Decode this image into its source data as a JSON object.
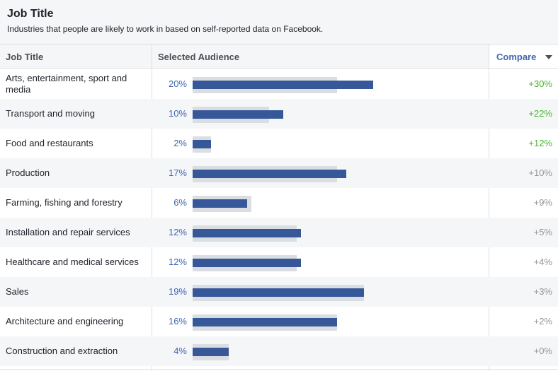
{
  "header": {
    "title": "Job Title",
    "subtitle": "Industries that people are likely to work in based on self-reported data on Facebook."
  },
  "columns": {
    "job": "Job Title",
    "audience": "Selected Audience",
    "compare": "Compare"
  },
  "colors": {
    "bar": "#365899",
    "bar_bg": "#dadde1",
    "positive": "#42b72a",
    "neutral": "#90949c",
    "link": "#4267b2"
  },
  "rows": [
    {
      "label": "Arts, entertainment, sport and media",
      "pct": "20%",
      "value": 20,
      "baseline": 16,
      "compare": "+30%",
      "highlight": true
    },
    {
      "label": "Transport and moving",
      "pct": "10%",
      "value": 10,
      "baseline": 8.5,
      "compare": "+22%",
      "highlight": true
    },
    {
      "label": "Food and restaurants",
      "pct": "2%",
      "value": 2,
      "baseline": 2,
      "compare": "+12%",
      "highlight": true
    },
    {
      "label": "Production",
      "pct": "17%",
      "value": 17,
      "baseline": 16,
      "compare": "+10%",
      "highlight": false
    },
    {
      "label": "Farming, fishing and forestry",
      "pct": "6%",
      "value": 6,
      "baseline": 6.5,
      "compare": "+9%",
      "highlight": false
    },
    {
      "label": "Installation and repair services",
      "pct": "12%",
      "value": 12,
      "baseline": 11.5,
      "compare": "+5%",
      "highlight": false
    },
    {
      "label": "Healthcare and medical services",
      "pct": "12%",
      "value": 12,
      "baseline": 11.5,
      "compare": "+4%",
      "highlight": false
    },
    {
      "label": "Sales",
      "pct": "19%",
      "value": 19,
      "baseline": 19,
      "compare": "+3%",
      "highlight": false
    },
    {
      "label": "Architecture and engineering",
      "pct": "16%",
      "value": 16,
      "baseline": 16,
      "compare": "+2%",
      "highlight": false
    },
    {
      "label": "Construction and extraction",
      "pct": "4%",
      "value": 4,
      "baseline": 4,
      "compare": "+0%",
      "highlight": false
    }
  ]
}
